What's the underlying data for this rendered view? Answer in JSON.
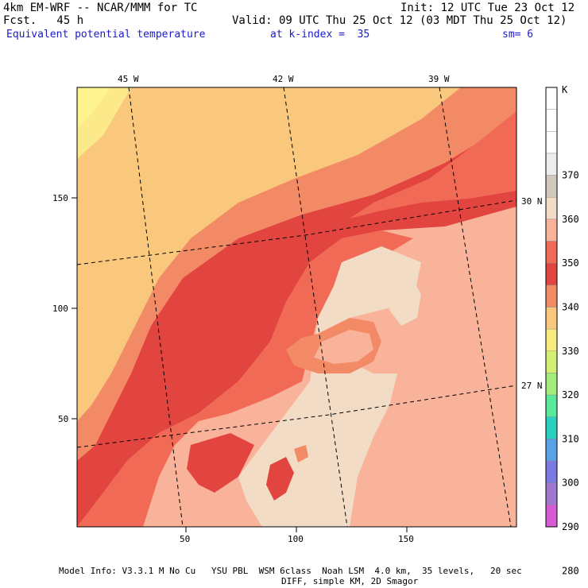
{
  "header": {
    "model": "4km EM-WRF -- NCAR/MMM for TC",
    "init": "Init: 12 UTC Tue 23 Oct 12",
    "fcst": "Fcst.   45 h",
    "valid": "Valid: 09 UTC Thu 25 Oct 12 (03 MDT Thu 25 Oct 12)",
    "field": "Equivalent potential temperature",
    "level": "at k-index =  35",
    "smooth": "sm= 6"
  },
  "map": {
    "top_lon_labels": [
      "45 W",
      "42 W",
      "39 W"
    ],
    "right_lat_labels": [
      "30 N",
      "27 N"
    ],
    "x_ticks": [
      "50",
      "100",
      "150"
    ],
    "y_ticks": [
      "150",
      "100",
      "50"
    ]
  },
  "colorbar": {
    "unit": "K",
    "levels": [
      "370",
      "360",
      "350",
      "340",
      "330",
      "320",
      "310",
      "300",
      "290",
      "280"
    ],
    "colors": [
      "#ffffff",
      "#ffffff",
      "#ffffff",
      "#ececec",
      "#d3c8bc",
      "#f2dcc6",
      "#f8b39a",
      "#f06a55",
      "#e2453f",
      "#f28a66",
      "#f9c87d",
      "#f7ec7e",
      "#d4f074",
      "#a2ec7a",
      "#5ae89a",
      "#2ad0c0",
      "#5aa2e8",
      "#7a7ae0",
      "#a078d2",
      "#d65cd6"
    ]
  },
  "footer": {
    "line1": "Model Info: V3.3.1 M No Cu   YSU PBL  WSM 6class  Noah LSM  4.0 km,  35 levels,   20 sec",
    "line2": "DIFF, simple KM, 2D Smagor"
  }
}
